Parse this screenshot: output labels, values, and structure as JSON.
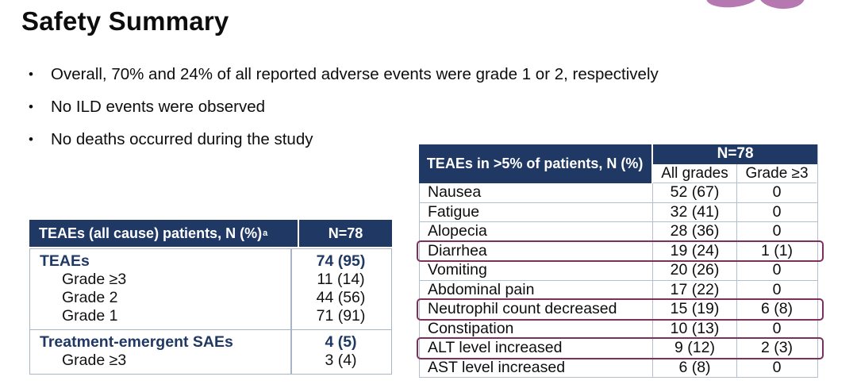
{
  "slide": {
    "title": "Safety Summary",
    "bullets": [
      "Overall, 70% and 24% of all reported adverse events were grade 1 or 2, respectively",
      "No ILD events were observed",
      "No deaths occurred during the study"
    ]
  },
  "left_table": {
    "header_label": "TEAEs (all cause) patients, N (%)",
    "header_superscript": "a",
    "n_label": "N=78",
    "sections": [
      {
        "rows": [
          {
            "label": "TEAEs",
            "value": "74 (95)",
            "bold": true,
            "indent": false
          },
          {
            "label": "Grade ≥3",
            "value": "11 (14)",
            "bold": false,
            "indent": true
          },
          {
            "label": "Grade 2",
            "value": "44 (56)",
            "bold": false,
            "indent": true
          },
          {
            "label": "Grade 1",
            "value": "71 (91)",
            "bold": false,
            "indent": true
          }
        ]
      },
      {
        "rows": [
          {
            "label": "Treatment-emergent SAEs",
            "value": "4 (5)",
            "bold": true,
            "indent": false
          },
          {
            "label": "Grade ≥3",
            "value": "3 (4)",
            "bold": false,
            "indent": true
          }
        ]
      }
    ]
  },
  "right_table": {
    "header_label": "TEAEs in >5% of patients, N (%)",
    "n_label": "N=78",
    "columns": [
      "All grades",
      "Grade ≥3"
    ],
    "rows": [
      {
        "label": "Nausea",
        "all_grades": "52 (67)",
        "grade_ge3": "0",
        "highlighted": false
      },
      {
        "label": "Fatigue",
        "all_grades": "32 (41)",
        "grade_ge3": "0",
        "highlighted": false
      },
      {
        "label": "Alopecia",
        "all_grades": "28 (36)",
        "grade_ge3": "0",
        "highlighted": false
      },
      {
        "label": "Diarrhea",
        "all_grades": "19 (24)",
        "grade_ge3": "1 (1)",
        "highlighted": true
      },
      {
        "label": "Vomiting",
        "all_grades": "20 (26)",
        "grade_ge3": "0",
        "highlighted": false
      },
      {
        "label": "Abdominal pain",
        "all_grades": "17 (22)",
        "grade_ge3": "0",
        "highlighted": false
      },
      {
        "label": "Neutrophil count decreased",
        "all_grades": "15 (19)",
        "grade_ge3": "6 (8)",
        "highlighted": true
      },
      {
        "label": "Constipation",
        "all_grades": "10 (13)",
        "grade_ge3": "0",
        "highlighted": false
      },
      {
        "label": "ALT level increased",
        "all_grades": "9 (12)",
        "grade_ge3": "2 (3)",
        "highlighted": true
      },
      {
        "label": "AST level increased",
        "all_grades": "6 (8)",
        "grade_ge3": "0",
        "highlighted": false
      }
    ]
  },
  "colors": {
    "header_navy": "#1f3864",
    "table_border": "#b3bfd1",
    "highlight_border": "#7e2f5c",
    "logo_purple": "#b678b0",
    "text": "#0d0d0d"
  }
}
